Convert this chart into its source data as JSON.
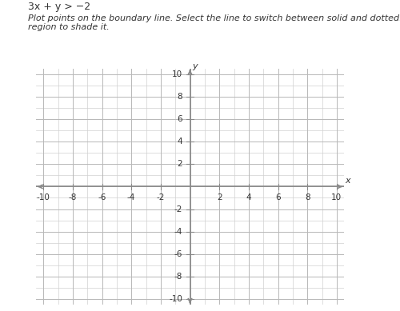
{
  "title_line1": "3x + y > −2",
  "instruction": "Plot points on the boundary line. Select the line to switch between solid and dotted. Select a\nregion to shade it.",
  "xlim": [
    -10,
    10
  ],
  "ylim": [
    -10,
    10
  ],
  "major_ticks": [
    -10,
    -8,
    -6,
    -4,
    -2,
    2,
    4,
    6,
    8,
    10
  ],
  "tick_labels_x": [
    "-10",
    "-8",
    "-6",
    "-4",
    "-2",
    "2",
    "4",
    "6",
    "8",
    "10"
  ],
  "tick_labels_y": [
    "-10",
    "-8",
    "-6",
    "-4",
    "-2",
    "2",
    "4",
    "6",
    "8",
    "10"
  ],
  "grid_minor_color": "#d0d0d0",
  "grid_major_color": "#b8b8b8",
  "axis_color": "#888888",
  "background_color": "#ffffff",
  "xlabel": "x",
  "ylabel": "y",
  "text_color": "#333333",
  "font_size_title": 9,
  "font_size_instruction": 8,
  "font_size_ticks": 7.5,
  "font_size_axis_label": 8
}
